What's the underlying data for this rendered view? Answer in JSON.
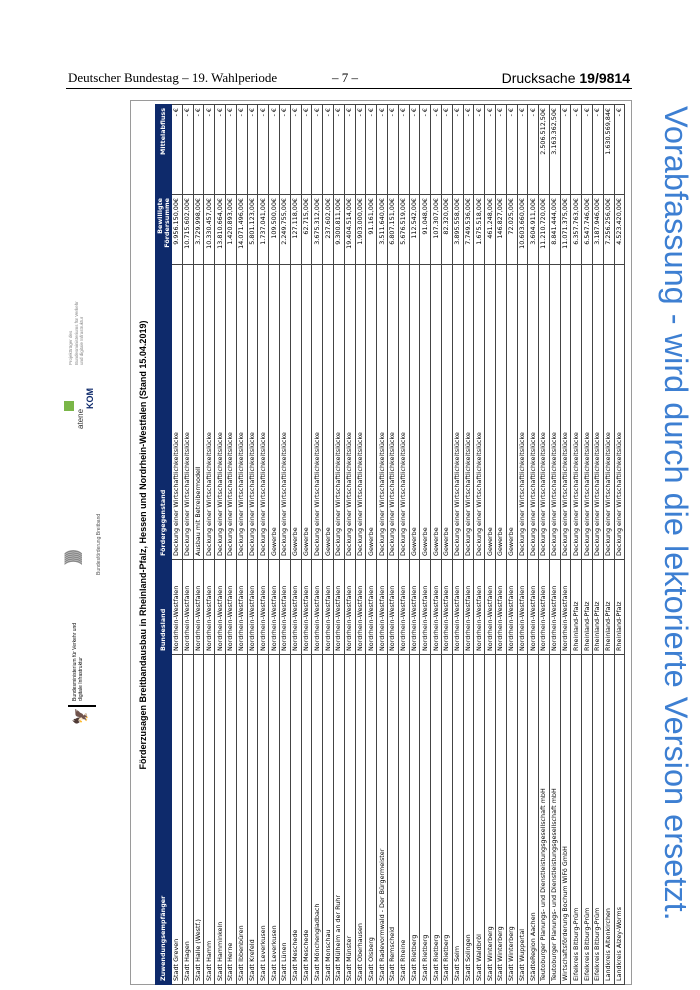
{
  "page_header": {
    "left": "Deutscher Bundestag – 19. Wahlperiode",
    "center": "– 7 –",
    "right_label": "Drucksache",
    "right_number": "19/9814"
  },
  "watermark": "Vorabfassung - wird durch die lektorierte Version ersetzt.",
  "logos": {
    "bmvi": "Bundesministerium für Verkehr und digitale Infrastruktur",
    "bundesfoerderung": "Bundesförderung Breitband",
    "atene_top": "atene",
    "atene_bottom": "KOM",
    "projekttraeger": "Projektträger des Bundesministeriums für Verkehr und digitale Infrastruktur"
  },
  "table": {
    "title": "Förderzusagen Breitbandausbau in Rheinland-Pfalz, Hessen und Nordrhein-Westfalen (Stand 15.04.2019)",
    "headers": [
      "Zuwendungsempfänger",
      "Bundesland",
      "Fördergegenstand",
      "Bewilligte Fördersumme",
      "Mittelabfluss"
    ],
    "rows": [
      [
        "Stadt Greven",
        "Nordrhein-Westfalen",
        "Deckung einer Wirtschaftlichkeitslücke",
        "9.956.150,00€",
        "- €"
      ],
      [
        "Stadt Hagen",
        "Nordrhein-Westfalen",
        "Deckung einer Wirtschaftlichkeitslücke",
        "10.715.602,00€",
        "- €"
      ],
      [
        "Stadt Halle (Westf.)",
        "Nordrhein-Westfalen",
        "Ausbau mit Betreibermodell",
        "3.729.998,00€",
        "- €"
      ],
      [
        "Stadt Hamm",
        "Nordrhein-Westfalen",
        "Deckung einer Wirtschaftlichkeitslücke",
        "10.330.457,00€",
        "- €"
      ],
      [
        "Stadt Hamminkeln",
        "Nordrhein-Westfalen",
        "Deckung einer Wirtschaftlichkeitslücke",
        "13.810.664,00€",
        "- €"
      ],
      [
        "Stadt Herne",
        "Nordrhein-Westfalen",
        "Deckung einer Wirtschaftlichkeitslücke",
        "1.420.893,00€",
        "- €"
      ],
      [
        "Stadt Ibbenbüren",
        "Nordrhein-Westfalen",
        "Deckung einer Wirtschaftlichkeitslücke",
        "14.071.496,00€",
        "- €"
      ],
      [
        "Stadt Krefeld",
        "Nordrhein-Westfalen",
        "Deckung einer Wirtschaftlichkeitslücke",
        "5.801.123,00€",
        "- €"
      ],
      [
        "Stadt Leverkusen",
        "Nordrhein-Westfalen",
        "Deckung einer Wirtschaftlichkeitslücke",
        "1.737.041,00€",
        "- €"
      ],
      [
        "Stadt Leverkusen",
        "Nordrhein-Westfalen",
        "Gewerbe",
        "109.500,00€",
        "- €"
      ],
      [
        "Stadt Lünen",
        "Nordrhein-Westfalen",
        "Deckung einer Wirtschaftlichkeitslücke",
        "2.249.755,00€",
        "- €"
      ],
      [
        "Stadt Meschede",
        "Nordrhein-Westfalen",
        "Gewerbe",
        "127.118,00€",
        "- €"
      ],
      [
        "Stadt Meschede",
        "Nordrhein-Westfalen",
        "Gewerbe",
        "62.715,00€",
        "- €"
      ],
      [
        "Stadt Mönchengladbach",
        "Nordrhein-Westfalen",
        "Deckung einer Wirtschaftlichkeitslücke",
        "3.675.312,00€",
        "- €"
      ],
      [
        "Stadt Monschau",
        "Nordrhein-Westfalen",
        "Gewerbe",
        "237.602,00€",
        "- €"
      ],
      [
        "Stadt Mülheim an der Ruhr",
        "Nordrhein-Westfalen",
        "Deckung einer Wirtschaftlichkeitslücke",
        "9.300.811,00€",
        "- €"
      ],
      [
        "Stadt Münster",
        "Nordrhein-Westfalen",
        "Deckung einer Wirtschaftlichkeitslücke",
        "19.404.514,00€",
        "- €"
      ],
      [
        "Stadt Oberhausen",
        "Nordrhein-Westfalen",
        "Deckung einer Wirtschaftlichkeitslücke",
        "1.903.000,00€",
        "- €"
      ],
      [
        "Stadt Olsberg",
        "Nordrhein-Westfalen",
        "Gewerbe",
        "91.161,00€",
        "- €"
      ],
      [
        "Stadt Radevormwald - Der Bürgermeister",
        "Nordrhein-Westfalen",
        "Deckung einer Wirtschaftlichkeitslücke",
        "3.511.640,00€",
        "- €"
      ],
      [
        "Stadt Remscheid",
        "Nordrhein-Westfalen",
        "Deckung einer Wirtschaftlichkeitslücke",
        "6.807.151,00€",
        "- €"
      ],
      [
        "Stadt Rheine",
        "Nordrhein-Westfalen",
        "Deckung einer Wirtschaftlichkeitslücke",
        "5.676.519,00€",
        "- €"
      ],
      [
        "Stadt Rietberg",
        "Nordrhein-Westfalen",
        "Gewerbe",
        "112.542,00€",
        "- €"
      ],
      [
        "Stadt Rietberg",
        "Nordrhein-Westfalen",
        "Gewerbe",
        "91.048,00€",
        "- €"
      ],
      [
        "Stadt Rietberg",
        "Nordrhein-Westfalen",
        "Gewerbe",
        "107.307,00€",
        "- €"
      ],
      [
        "Stadt Rietberg",
        "Nordrhein-Westfalen",
        "Gewerbe",
        "82.320,00€",
        "- €"
      ],
      [
        "Stadt Selm",
        "Nordrhein-Westfalen",
        "Deckung einer Wirtschaftlichkeitslücke",
        "3.895.558,00€",
        "- €"
      ],
      [
        "Stadt Solingen",
        "Nordrhein-Westfalen",
        "Deckung einer Wirtschaftlichkeitslücke",
        "7.749.536,00€",
        "- €"
      ],
      [
        "Stadt Waldbröl",
        "Nordrhein-Westfalen",
        "Deckung einer Wirtschaftlichkeitslücke",
        "1.675.518,00€",
        "- €"
      ],
      [
        "Stadt Winterberg",
        "Nordrhein-Westfalen",
        "Gewerbe",
        "461.248,00€",
        "- €"
      ],
      [
        "Stadt Winterberg",
        "Nordrhein-Westfalen",
        "Gewerbe",
        "146.827,00€",
        "- €"
      ],
      [
        "Stadt Winterberg",
        "Nordrhein-Westfalen",
        "Gewerbe",
        "72.025,00€",
        "- €"
      ],
      [
        "Stadt Wuppertal",
        "Nordrhein-Westfalen",
        "Deckung einer Wirtschaftlichkeitslücke",
        "10.603.660,00€",
        "- €"
      ],
      [
        "StädteRegion Aachen",
        "Nordrhein-Westfalen",
        "Deckung einer Wirtschaftlichkeitslücke",
        "3.604.911,00€",
        "- €"
      ],
      [
        "Teutoburger Planungs- und Dienstleistungsgesellschaft mbH",
        "Nordrhein-Westfalen",
        "Deckung einer Wirtschaftlichkeitslücke",
        "11.210.720,00€",
        "2.506.512,50€"
      ],
      [
        "Teutoburger Planungs- und Dienstleistungsgesellschaft mbH",
        "Nordrhein-Westfalen",
        "Deckung einer Wirtschaftlichkeitslücke",
        "8.841.444,00€",
        "3.163.362,50€"
      ],
      [
        "Wirtschaftsförderung Bochum WiFö GmbH",
        "Nordrhein-Westfalen",
        "Deckung einer Wirtschaftlichkeitslücke",
        "11.071.375,00€",
        "- €"
      ],
      [
        "Eifelkreis Bitburg-Prüm",
        "Rheinland-Pfalz",
        "Deckung einer Wirtschaftlichkeitslücke",
        "6.357.763,00€",
        "- €"
      ],
      [
        "Eifelkreis Bitburg-Prüm",
        "Rheinland-Pfalz",
        "Deckung einer Wirtschaftlichkeitslücke",
        "6.547.746,00€",
        "- €"
      ],
      [
        "Eifelkreis Bitburg-Prüm",
        "Rheinland-Pfalz",
        "Deckung einer Wirtschaftlichkeitslücke",
        "3.187.946,00€",
        "- €"
      ],
      [
        "Landkreis Altenkirchen",
        "Rheinland-Pfalz",
        "Deckung einer Wirtschaftlichkeitslücke",
        "7.256.256,00€",
        "1.630.569,84€"
      ],
      [
        "Landkreis Alzey-Worms",
        "Rheinland-Pfalz",
        "Deckung einer Wirtschaftlichkeitslücke",
        "4.523.420,00€",
        "- €"
      ]
    ]
  },
  "colors": {
    "header_bg": "#0e2a6b",
    "watermark": "#3d7fd2"
  }
}
